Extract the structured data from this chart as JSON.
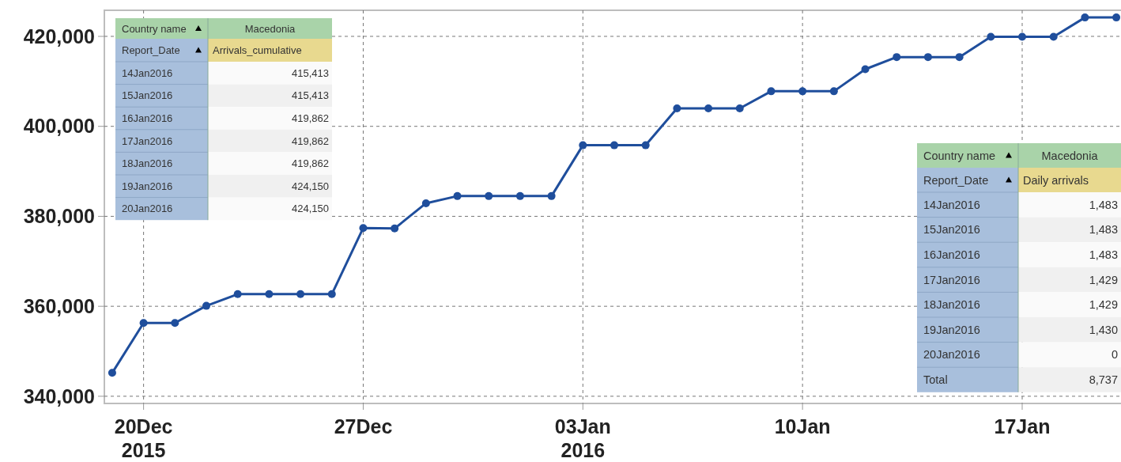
{
  "chart_data": [
    {
      "type": "line",
      "x": [
        "2015-12-19",
        "2015-12-20",
        "2015-12-21",
        "2015-12-22",
        "2015-12-23",
        "2015-12-24",
        "2015-12-25",
        "2015-12-26",
        "2015-12-27",
        "2015-12-28",
        "2015-12-29",
        "2015-12-30",
        "2015-12-31",
        "2016-01-01",
        "2016-01-02",
        "2016-01-03",
        "2016-01-04",
        "2016-01-05",
        "2016-01-06",
        "2016-01-07",
        "2016-01-08",
        "2016-01-09",
        "2016-01-10",
        "2016-01-11",
        "2016-01-12",
        "2016-01-13",
        "2016-01-14",
        "2016-01-15",
        "2016-01-16",
        "2016-01-17",
        "2016-01-18",
        "2016-01-19",
        "2016-01-20"
      ],
      "series": [
        {
          "color": "#1f4e9c",
          "values": [
            345200,
            356300,
            356300,
            360100,
            362700,
            362700,
            362700,
            362700,
            377400,
            377300,
            382900,
            384500,
            384500,
            384500,
            384500,
            395800,
            395800,
            395800,
            404000,
            404000,
            404000,
            407800,
            407800,
            407800,
            412700,
            415400,
            415400,
            415400,
            419900,
            419900,
            419900,
            424200,
            424200
          ]
        }
      ],
      "xlim": [
        "2015-12-18T18:00",
        "2016-01-20T06:00"
      ],
      "xticks": [
        {
          "value": "2015-12-20",
          "label": "20Dec\n2015"
        },
        {
          "value": "2015-12-27",
          "label": "27Dec"
        },
        {
          "value": "2016-01-03",
          "label": "03Jan\n2016"
        },
        {
          "value": "2016-01-10",
          "label": "10Jan"
        },
        {
          "value": "2016-01-17",
          "label": "17Jan"
        }
      ],
      "ylim": [
        338400,
        425800
      ],
      "yticks": [
        {
          "value": 340000,
          "label": "340,000"
        },
        {
          "value": 360000,
          "label": "360,000"
        },
        {
          "value": 380000,
          "label": "380,000"
        },
        {
          "value": 400000,
          "label": "400,000"
        },
        {
          "value": 420000,
          "label": "420,000"
        }
      ],
      "grid": true,
      "marker": "circle",
      "line_style": "solid"
    },
    {
      "type": "other",
      "annotations": [
        "Country name",
        "Macedonia",
        "Report_Date",
        "Arrivals_cumulative",
        "415,413",
        "415,413",
        "419,862",
        "419,862",
        "419,862",
        "424,150",
        "424,150"
      ],
      "categories": [
        "14Jan2016",
        "15Jan2016",
        "16Jan2016",
        "17Jan2016",
        "18Jan2016",
        "19Jan2016",
        "20Jan2016"
      ]
    },
    {
      "type": "other",
      "annotations": [
        "Country name",
        "Macedonia",
        "Report_Date",
        "Daily arrivals",
        "1,483",
        "1,483",
        "1,483",
        "1,429",
        "1,429",
        "1,430",
        "0",
        "8,737"
      ],
      "categories": [
        "14Jan2016",
        "15Jan2016",
        "16Jan2016",
        "17Jan2016",
        "18Jan2016",
        "19Jan2016",
        "20Jan2016",
        "Total"
      ]
    }
  ]
}
